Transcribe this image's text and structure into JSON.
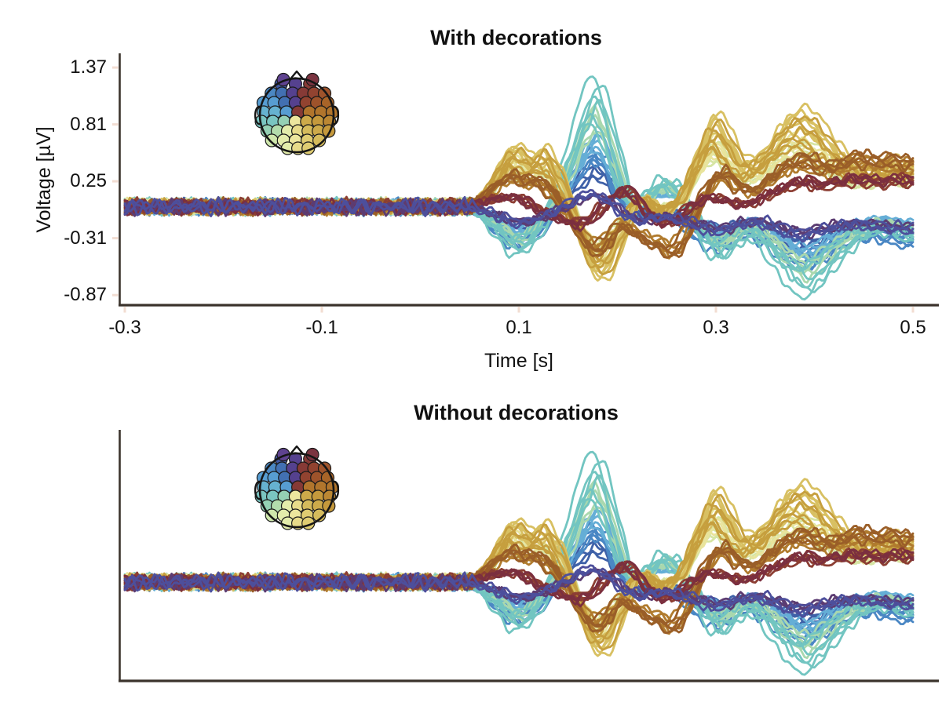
{
  "chart_data": {
    "type": "line",
    "subtype": "eeg-butterfly-evoked",
    "panels": [
      {
        "title": "With decorations",
        "decorations": true
      },
      {
        "title": "Without decorations",
        "decorations": false
      }
    ],
    "xlabel": "Time [s]",
    "ylabel": "Voltage [µV]",
    "xlim": [
      -0.3,
      0.5
    ],
    "ylim": [
      -0.97,
      1.49
    ],
    "x_ticks": [
      -0.3,
      -0.1,
      0.1,
      0.3,
      0.5
    ],
    "y_ticks": [
      1.37,
      0.81,
      0.25,
      -0.31,
      -0.87
    ],
    "x_tick_labels": [
      "-0.3",
      "-0.1",
      "0.1",
      "0.3",
      "0.5"
    ],
    "y_tick_labels": [
      "1.37",
      "0.81",
      "0.25",
      "-0.31",
      "-0.87"
    ],
    "grid": false,
    "legend": "none",
    "n_channels": 68,
    "baseline": {
      "span_s": [
        -0.3,
        0.05
      ],
      "noise_amp_uv": 0.09,
      "noise_freqs_hz": [
        46,
        67,
        89
      ]
    },
    "spine_color": "#3b332c",
    "tick_mark_color": "#f2ddd2",
    "text_color": "#111111",
    "templates": {
      "yellow": [
        [
          0.05,
          0.02
        ],
        [
          0.068,
          0.18
        ],
        [
          0.082,
          0.45
        ],
        [
          0.095,
          0.62
        ],
        [
          0.11,
          0.5
        ],
        [
          0.125,
          0.58
        ],
        [
          0.14,
          0.34
        ],
        [
          0.155,
          -0.08
        ],
        [
          0.168,
          -0.5
        ],
        [
          0.18,
          -0.73
        ],
        [
          0.192,
          -0.62
        ],
        [
          0.205,
          -0.3
        ],
        [
          0.218,
          0.02
        ],
        [
          0.228,
          0.1
        ],
        [
          0.24,
          -0.04
        ],
        [
          0.252,
          -0.02
        ],
        [
          0.265,
          0.1
        ],
        [
          0.278,
          0.45
        ],
        [
          0.292,
          0.82
        ],
        [
          0.3,
          0.93
        ],
        [
          0.312,
          0.72
        ],
        [
          0.325,
          0.5
        ],
        [
          0.338,
          0.48
        ],
        [
          0.352,
          0.62
        ],
        [
          0.368,
          0.85
        ],
        [
          0.385,
          0.97
        ],
        [
          0.4,
          0.88
        ],
        [
          0.415,
          0.68
        ],
        [
          0.432,
          0.5
        ],
        [
          0.448,
          0.4
        ],
        [
          0.462,
          0.42
        ],
        [
          0.478,
          0.48
        ],
        [
          0.49,
          0.42
        ],
        [
          0.5,
          0.44
        ]
      ],
      "cyan": [
        [
          0.05,
          -0.02
        ],
        [
          0.065,
          -0.12
        ],
        [
          0.08,
          -0.3
        ],
        [
          0.097,
          -0.48
        ],
        [
          0.112,
          -0.38
        ],
        [
          0.128,
          -0.1
        ],
        [
          0.145,
          0.35
        ],
        [
          0.16,
          0.85
        ],
        [
          0.172,
          1.22
        ],
        [
          0.178,
          1.3
        ],
        [
          0.186,
          1.1
        ],
        [
          0.198,
          0.6
        ],
        [
          0.21,
          0.12
        ],
        [
          0.222,
          0.05
        ],
        [
          0.235,
          0.18
        ],
        [
          0.248,
          0.28
        ],
        [
          0.26,
          0.2
        ],
        [
          0.275,
          -0.08
        ],
        [
          0.29,
          -0.38
        ],
        [
          0.302,
          -0.52
        ],
        [
          0.315,
          -0.45
        ],
        [
          0.33,
          -0.32
        ],
        [
          0.345,
          -0.38
        ],
        [
          0.362,
          -0.6
        ],
        [
          0.38,
          -0.82
        ],
        [
          0.393,
          -0.9
        ],
        [
          0.408,
          -0.75
        ],
        [
          0.425,
          -0.55
        ],
        [
          0.442,
          -0.38
        ],
        [
          0.458,
          -0.28
        ],
        [
          0.472,
          -0.26
        ],
        [
          0.485,
          -0.3
        ],
        [
          0.5,
          -0.34
        ]
      ],
      "blue": [
        [
          0.05,
          0.0
        ],
        [
          0.07,
          -0.15
        ],
        [
          0.09,
          -0.35
        ],
        [
          0.105,
          -0.4
        ],
        [
          0.12,
          -0.28
        ],
        [
          0.138,
          -0.02
        ],
        [
          0.155,
          0.3
        ],
        [
          0.17,
          0.52
        ],
        [
          0.18,
          0.58
        ],
        [
          0.192,
          0.4
        ],
        [
          0.205,
          0.1
        ],
        [
          0.218,
          -0.08
        ],
        [
          0.232,
          -0.1
        ],
        [
          0.246,
          -0.05
        ],
        [
          0.26,
          -0.12
        ],
        [
          0.275,
          -0.25
        ],
        [
          0.29,
          -0.38
        ],
        [
          0.305,
          -0.45
        ],
        [
          0.32,
          -0.35
        ],
        [
          0.335,
          -0.3
        ],
        [
          0.352,
          -0.38
        ],
        [
          0.37,
          -0.52
        ],
        [
          0.388,
          -0.62
        ],
        [
          0.402,
          -0.58
        ],
        [
          0.42,
          -0.45
        ],
        [
          0.438,
          -0.36
        ],
        [
          0.455,
          -0.32
        ],
        [
          0.472,
          -0.34
        ],
        [
          0.488,
          -0.38
        ],
        [
          0.5,
          -0.4
        ]
      ],
      "brown": [
        [
          0.05,
          0.02
        ],
        [
          0.07,
          0.18
        ],
        [
          0.088,
          0.32
        ],
        [
          0.105,
          0.28
        ],
        [
          0.122,
          0.25
        ],
        [
          0.14,
          0.05
        ],
        [
          0.158,
          -0.25
        ],
        [
          0.172,
          -0.45
        ],
        [
          0.185,
          -0.42
        ],
        [
          0.2,
          -0.22
        ],
        [
          0.212,
          -0.25
        ],
        [
          0.225,
          -0.35
        ],
        [
          0.24,
          -0.42
        ],
        [
          0.255,
          -0.48
        ],
        [
          0.268,
          -0.32
        ],
        [
          0.282,
          0.0
        ],
        [
          0.295,
          0.28
        ],
        [
          0.308,
          0.35
        ],
        [
          0.322,
          0.22
        ],
        [
          0.338,
          0.18
        ],
        [
          0.355,
          0.32
        ],
        [
          0.372,
          0.45
        ],
        [
          0.39,
          0.5
        ],
        [
          0.408,
          0.42
        ],
        [
          0.425,
          0.45
        ],
        [
          0.442,
          0.52
        ],
        [
          0.458,
          0.48
        ],
        [
          0.475,
          0.5
        ],
        [
          0.49,
          0.46
        ],
        [
          0.5,
          0.48
        ]
      ],
      "maroon": [
        [
          0.05,
          0.0
        ],
        [
          0.075,
          0.08
        ],
        [
          0.1,
          0.1
        ],
        [
          0.125,
          -0.06
        ],
        [
          0.148,
          -0.15
        ],
        [
          0.165,
          -0.18
        ],
        [
          0.182,
          -0.05
        ],
        [
          0.2,
          0.14
        ],
        [
          0.215,
          0.16
        ],
        [
          0.232,
          -0.08
        ],
        [
          0.248,
          -0.18
        ],
        [
          0.262,
          -0.12
        ],
        [
          0.278,
          0.02
        ],
        [
          0.295,
          0.1
        ],
        [
          0.312,
          0.06
        ],
        [
          0.33,
          0.02
        ],
        [
          0.348,
          0.1
        ],
        [
          0.368,
          0.2
        ],
        [
          0.388,
          0.28
        ],
        [
          0.408,
          0.24
        ],
        [
          0.428,
          0.28
        ],
        [
          0.448,
          0.3
        ],
        [
          0.468,
          0.27
        ],
        [
          0.485,
          0.3
        ],
        [
          0.5,
          0.28
        ]
      ],
      "purple": [
        [
          0.05,
          0.0
        ],
        [
          0.075,
          -0.08
        ],
        [
          0.1,
          -0.16
        ],
        [
          0.125,
          -0.1
        ],
        [
          0.15,
          0.02
        ],
        [
          0.17,
          0.12
        ],
        [
          0.188,
          0.08
        ],
        [
          0.205,
          -0.06
        ],
        [
          0.225,
          -0.14
        ],
        [
          0.245,
          -0.1
        ],
        [
          0.265,
          -0.14
        ],
        [
          0.285,
          -0.2
        ],
        [
          0.305,
          -0.24
        ],
        [
          0.325,
          -0.18
        ],
        [
          0.345,
          -0.16
        ],
        [
          0.365,
          -0.22
        ],
        [
          0.385,
          -0.28
        ],
        [
          0.405,
          -0.24
        ],
        [
          0.425,
          -0.2
        ],
        [
          0.445,
          -0.18
        ],
        [
          0.465,
          -0.2
        ],
        [
          0.485,
          -0.22
        ],
        [
          0.5,
          -0.22
        ]
      ]
    },
    "groups": [
      {
        "name": "dark-blue",
        "color": "#3f61a8",
        "count": 4,
        "template": "blue",
        "scale": [
          0.45,
          0.7
        ]
      },
      {
        "name": "blue",
        "color": "#4a87c4",
        "count": 5,
        "template": "blue",
        "scale": [
          0.72,
          1.0
        ]
      },
      {
        "name": "light-blue",
        "color": "#65aed6",
        "count": 5,
        "template": "cyan",
        "scale": [
          0.4,
          0.58
        ]
      },
      {
        "name": "pale-green",
        "color": "#a9d8ae",
        "count": 5,
        "template": "cyan",
        "scale": [
          0.55,
          0.8
        ]
      },
      {
        "name": "cyan",
        "color": "#72c5c1",
        "count": 6,
        "template": "cyan",
        "scale": [
          0.62,
          1.02
        ]
      },
      {
        "name": "pale-yellow-green",
        "color": "#d6e5a4",
        "count": 5,
        "template": "yellow",
        "scale": [
          0.45,
          0.7
        ]
      },
      {
        "name": "pale-yellow",
        "color": "#e9e49c",
        "count": 4,
        "template": "yellow",
        "scale": [
          0.5,
          0.78
        ]
      },
      {
        "name": "yellow",
        "color": "#d8c062",
        "count": 6,
        "template": "yellow",
        "scale": [
          0.72,
          1.03
        ]
      },
      {
        "name": "gold",
        "color": "#c69f3e",
        "count": 6,
        "template": "yellow",
        "scale": [
          0.55,
          0.92
        ]
      },
      {
        "name": "orange-brown",
        "color": "#b07b2e",
        "count": 5,
        "template": "brown",
        "scale": [
          0.7,
          1.0
        ]
      },
      {
        "name": "brown",
        "color": "#9a5e28",
        "count": 4,
        "template": "brown",
        "scale": [
          0.82,
          1.05
        ]
      },
      {
        "name": "dark-red",
        "color": "#8c3e33",
        "count": 4,
        "template": "maroon",
        "scale": [
          0.7,
          1.0
        ]
      },
      {
        "name": "maroon",
        "color": "#7b2f3f",
        "count": 3,
        "template": "maroon",
        "scale": [
          0.85,
          1.05
        ]
      },
      {
        "name": "dark-purple",
        "color": "#5c3c72",
        "count": 3,
        "template": "purple",
        "scale": [
          0.75,
          1.0
        ]
      },
      {
        "name": "purple-blue",
        "color": "#4d4f9c",
        "count": 3,
        "template": "purple",
        "scale": [
          0.85,
          1.15
        ]
      }
    ],
    "head_inset": {
      "outline_color": "#151515",
      "dot_stroke": "#1a1a1a",
      "palette_clockwise_from_top": [
        "#7b3440",
        "#863a36",
        "#924330",
        "#9e532b",
        "#a86428",
        "#b1752c",
        "#bb8733",
        "#c5993c",
        "#cdaa4a",
        "#d5bb5c",
        "#dfcc72",
        "#e7db8a",
        "#ece69e",
        "#e3ecab",
        "#cfe7ac",
        "#b3dcac",
        "#95d0b4",
        "#7ac5c1",
        "#66b2d0",
        "#579dd2",
        "#4b88c3",
        "#4270b2",
        "#42579f",
        "#55418f"
      ],
      "outside_dot_colors": [
        "#5f4390",
        "#7b3440"
      ]
    }
  }
}
